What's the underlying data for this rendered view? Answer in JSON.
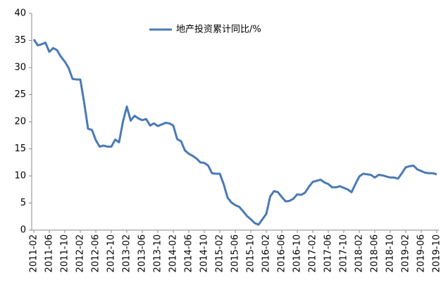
{
  "chart_data": {
    "type": "line",
    "categories": [
      "2011-02",
      null,
      null,
      null,
      "2011-06",
      null,
      null,
      null,
      "2011-10",
      null,
      null,
      null,
      "2012-02",
      null,
      null,
      null,
      "2012-06",
      null,
      null,
      null,
      "2012-10",
      null,
      null,
      null,
      "2013-02",
      null,
      null,
      null,
      "2013-06",
      null,
      null,
      null,
      "2013-10",
      null,
      null,
      null,
      "2014-02",
      null,
      null,
      null,
      "2014-06",
      null,
      null,
      null,
      "2014-10",
      null,
      null,
      null,
      "2015-02",
      null,
      null,
      null,
      "2015-06",
      null,
      null,
      null,
      "2015-10",
      null,
      null,
      null,
      "2016-02",
      null,
      null,
      null,
      "2016-06",
      null,
      null,
      null,
      "2016-10",
      null,
      null,
      null,
      "2017-02",
      null,
      null,
      null,
      "2017-06",
      null,
      null,
      null,
      "2017-10",
      null,
      null,
      null,
      "2018-02",
      null,
      null,
      null,
      "2018-06",
      null,
      null,
      null,
      "2018-10",
      null,
      null,
      null,
      "2019-02",
      null,
      null,
      null,
      "2019-06",
      null,
      null,
      null,
      "2019-10"
    ],
    "series": [
      {
        "name": "地产投资累计同比/%",
        "color": "#4a7ab5",
        "values": [
          35.2,
          34.1,
          34.3,
          34.6,
          32.9,
          33.6,
          33.2,
          32.0,
          31.1,
          29.9,
          27.9,
          27.8,
          27.8,
          23.5,
          18.7,
          18.5,
          16.6,
          15.4,
          15.6,
          15.4,
          15.4,
          16.7,
          16.2,
          20.0,
          22.8,
          20.2,
          21.1,
          20.6,
          20.3,
          20.5,
          19.3,
          19.7,
          19.2,
          19.5,
          19.8,
          19.7,
          19.3,
          16.8,
          16.4,
          14.7,
          14.1,
          13.7,
          13.2,
          12.5,
          12.4,
          11.9,
          10.5,
          10.4,
          10.4,
          8.5,
          6.0,
          5.1,
          4.6,
          4.3,
          3.5,
          2.6,
          2.0,
          1.3,
          1.0,
          2.0,
          3.0,
          6.2,
          7.2,
          7.0,
          6.1,
          5.3,
          5.4,
          5.8,
          6.6,
          6.5,
          6.9,
          8.0,
          8.9,
          9.1,
          9.3,
          8.8,
          8.5,
          7.9,
          7.9,
          8.1,
          7.8,
          7.5,
          7.0,
          8.5,
          9.9,
          10.4,
          10.3,
          10.2,
          9.7,
          10.2,
          10.1,
          9.9,
          9.7,
          9.7,
          9.5,
          10.5,
          11.6,
          11.8,
          11.9,
          11.2,
          10.9,
          10.6,
          10.5,
          10.5,
          10.3
        ]
      }
    ],
    "ylim": [
      0,
      40
    ],
    "yticks": [
      0,
      5,
      10,
      15,
      20,
      25,
      30,
      35,
      40
    ],
    "grid": false,
    "legend": "top"
  }
}
